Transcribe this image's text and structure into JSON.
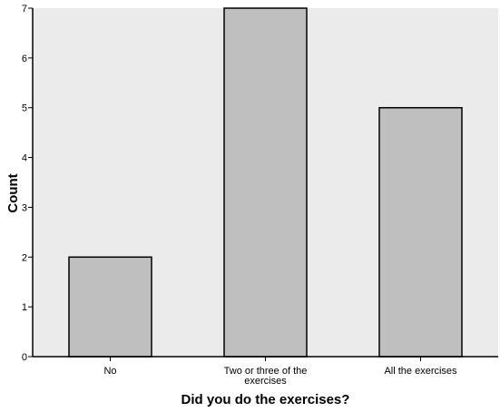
{
  "chart_data": {
    "type": "bar",
    "title": "",
    "xlabel": "Did you do the exercises?",
    "ylabel": "Count",
    "categories": [
      [
        "No"
      ],
      [
        "Two or three of the",
        "exercises"
      ],
      [
        "All the exercises"
      ]
    ],
    "values": [
      2,
      7,
      5
    ],
    "ylim": [
      0,
      7
    ],
    "yticks": [
      "0",
      "1",
      "2",
      "3",
      "4",
      "5",
      "6",
      "7"
    ],
    "grid": false,
    "legend": "none",
    "colors": {
      "plot_background": "#ebebeb",
      "bar_fill": "#bfbfbf",
      "bar_stroke": "#000000",
      "axis": "#000000"
    }
  }
}
